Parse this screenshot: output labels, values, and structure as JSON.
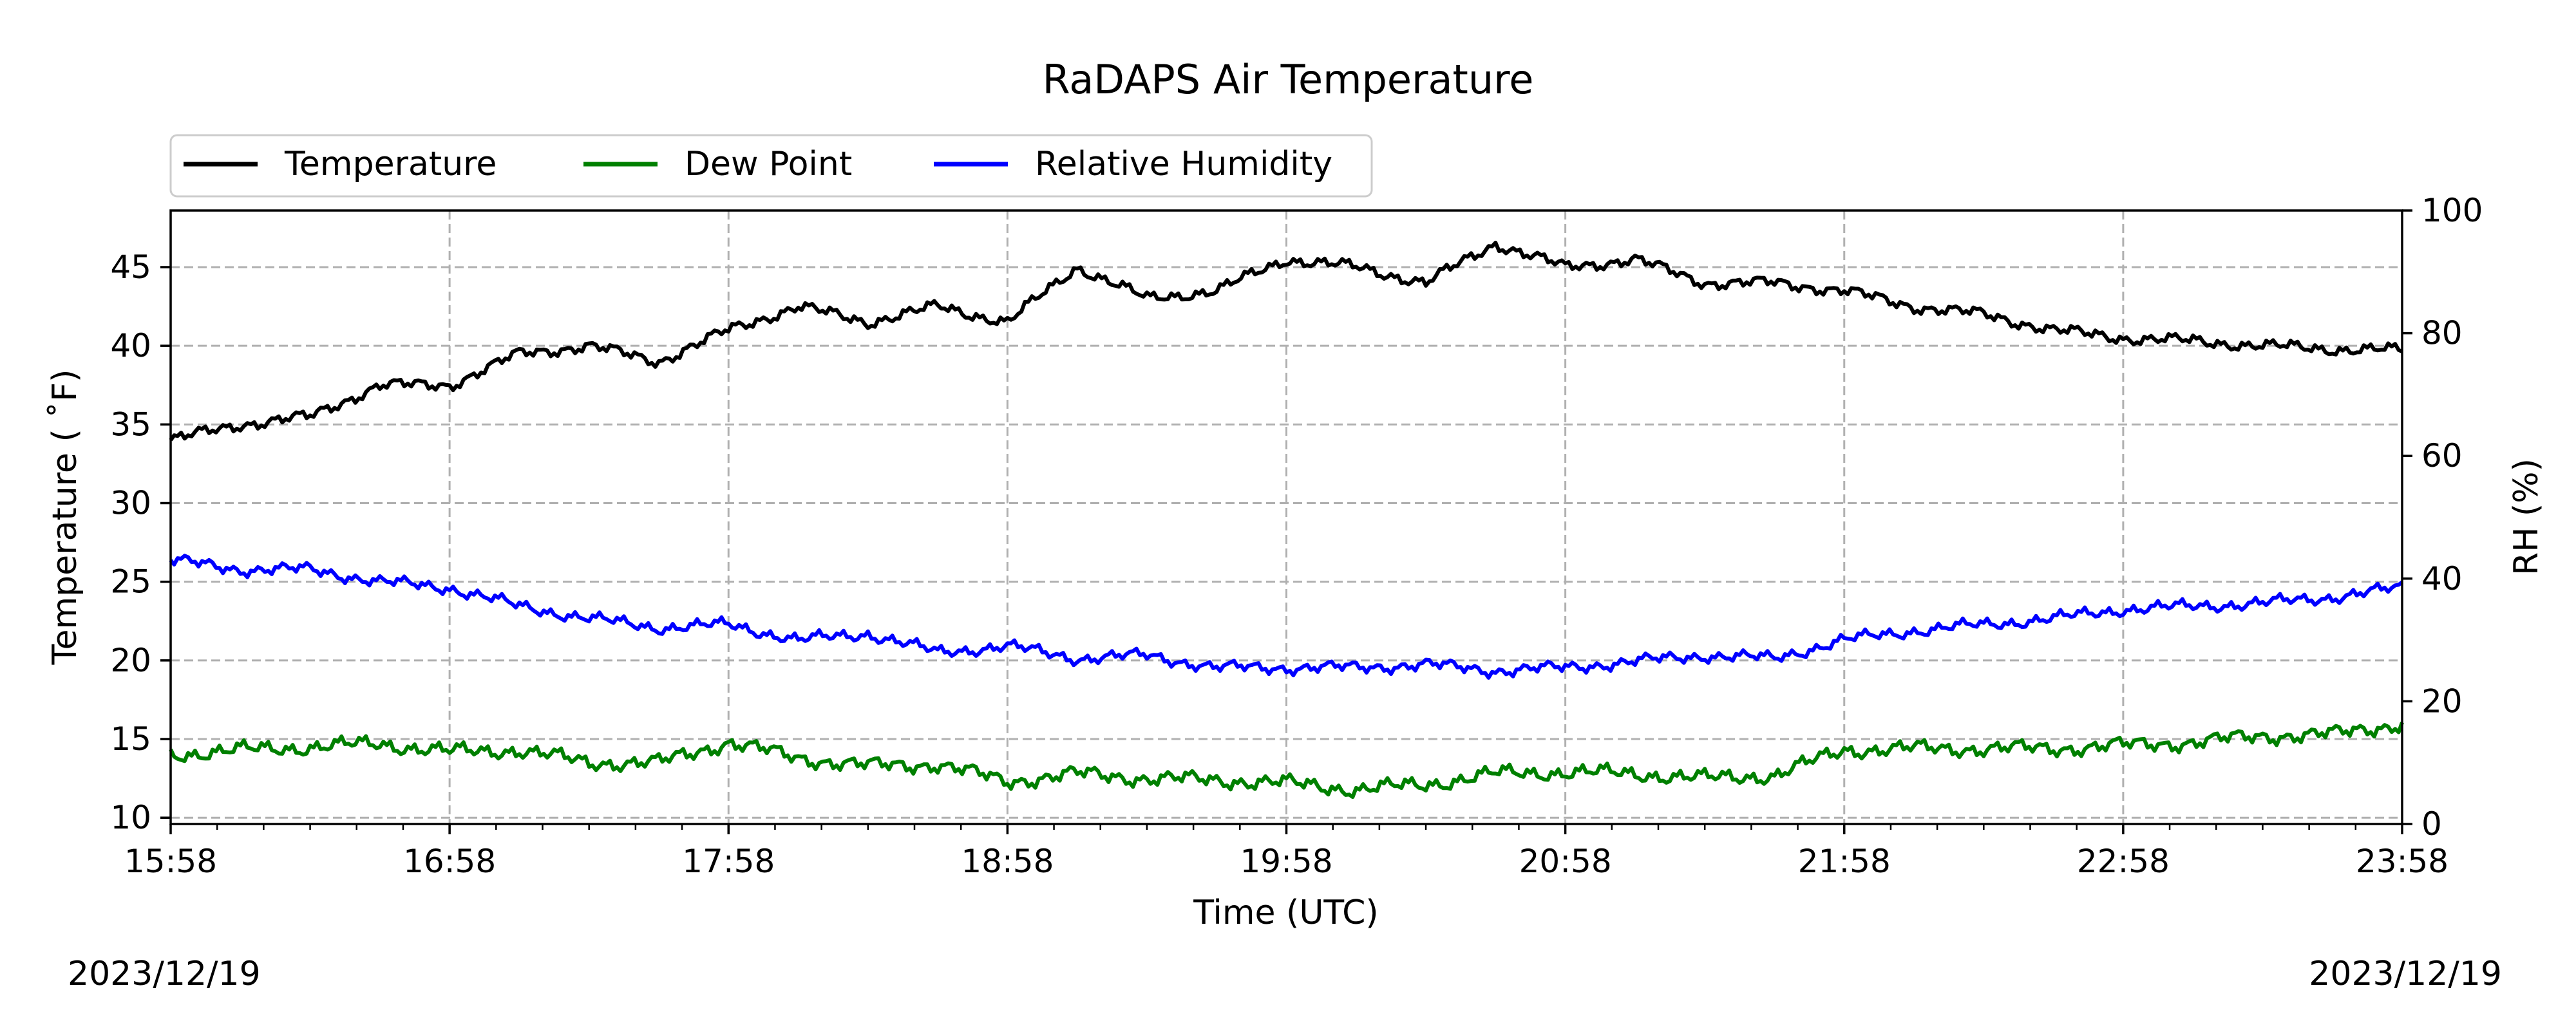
{
  "chart_data": {
    "type": "line",
    "title": "RaDAPS Air Temperature",
    "xlabel": "Time (UTC)",
    "ylabel": "Temperature ( $^\\circ$F)",
    "ylabel_display": "Temperature ( ˚F)",
    "y2label": "RH (%)",
    "x_ticks": [
      "15:58",
      "16:58",
      "17:58",
      "18:58",
      "19:58",
      "20:58",
      "21:58",
      "22:58",
      "23:58"
    ],
    "y_ticks": [
      10,
      15,
      20,
      25,
      30,
      35,
      40,
      45
    ],
    "y2_ticks": [
      0,
      20,
      40,
      60,
      80,
      100
    ],
    "xlim_hours": [
      0,
      8
    ],
    "ylim": [
      9.6,
      48.6
    ],
    "y2lim": [
      0,
      100
    ],
    "grid": true,
    "legend_position": "top-left, above plot",
    "date_left": "2023/12/19",
    "date_right": "2023/12/19",
    "x": [
      0.0,
      0.25,
      0.5,
      0.75,
      1.0,
      1.25,
      1.5,
      1.75,
      2.0,
      2.25,
      2.5,
      2.75,
      3.0,
      3.25,
      3.5,
      3.75,
      4.0,
      4.25,
      4.5,
      4.75,
      5.0,
      5.25,
      5.5,
      5.75,
      6.0,
      6.25,
      6.5,
      6.75,
      7.0,
      7.25,
      7.5,
      7.75,
      8.0
    ],
    "series": [
      {
        "name": "Temperature",
        "color": "#000000",
        "axis": "left",
        "values": [
          34.0,
          35.0,
          35.5,
          37.5,
          37.5,
          39.5,
          40.0,
          39.0,
          41.0,
          42.5,
          41.5,
          42.5,
          41.5,
          45.0,
          43.0,
          43.5,
          45.5,
          45.0,
          44.0,
          46.5,
          45.0,
          45.5,
          44.0,
          44.0,
          43.5,
          42.5,
          42.0,
          41.0,
          40.5,
          40.3,
          40.0,
          39.8,
          39.7
        ]
      },
      {
        "name": "Dew Point",
        "color": "#008000",
        "axis": "left",
        "values": [
          14.0,
          14.3,
          14.5,
          14.7,
          14.2,
          14.3,
          13.5,
          13.5,
          14.8,
          13.8,
          13.3,
          13.4,
          12.3,
          12.8,
          12.5,
          12.4,
          12.2,
          11.8,
          12.1,
          12.8,
          12.9,
          12.8,
          12.5,
          12.7,
          14.3,
          14.4,
          14.4,
          14.4,
          14.6,
          14.8,
          15.2,
          15.3,
          16.0
        ]
      },
      {
        "name": "Relative Humidity",
        "color": "#0000ff",
        "axis": "right",
        "values": [
          43.0,
          41.5,
          41.5,
          39.5,
          38.5,
          35.5,
          33.5,
          32.0,
          32.5,
          30.0,
          31.0,
          28.0,
          29.0,
          27.0,
          27.5,
          25.5,
          25.5,
          25.5,
          26.0,
          25.0,
          25.5,
          26.5,
          27.5,
          27.0,
          30.0,
          31.5,
          32.5,
          33.5,
          35.0,
          35.5,
          36.0,
          37.0,
          38.5
        ]
      }
    ]
  }
}
